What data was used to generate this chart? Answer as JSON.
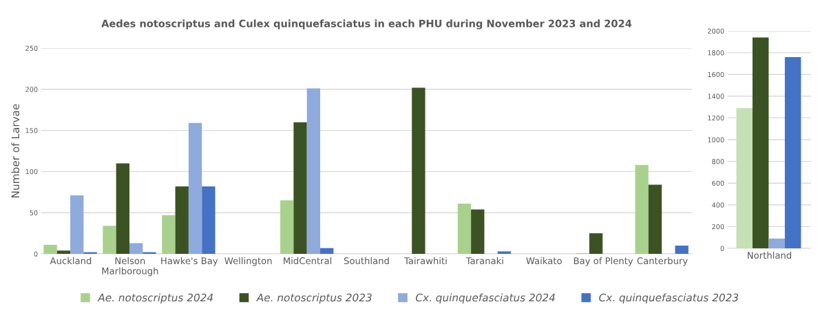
{
  "chart_data": [
    {
      "type": "bar",
      "title": "Aedes notoscriptus and Culex quinquefasciatus in each PHU during November 2023 and 2024",
      "ylabel": "Number of Larvae",
      "categories": [
        "Auckland",
        "Nelson\nMarlborough",
        "Hawke's Bay",
        "Wellington",
        "MidCentral",
        "Southland",
        "Tairawhiti",
        "Taranaki",
        "Waikato",
        "Bay of Plenty",
        "Canterbury"
      ],
      "series": [
        {
          "name": "Ae. notoscriptus 2024",
          "color": "#a9d18e",
          "values": [
            11,
            34,
            47,
            null,
            65,
            null,
            null,
            61,
            null,
            1,
            108
          ]
        },
        {
          "name": "Ae. notoscriptus 2023",
          "color": "#3b5323",
          "values": [
            4,
            110,
            82,
            null,
            160,
            null,
            202,
            54,
            null,
            25,
            84
          ]
        },
        {
          "name": "Cx. quinquefasciatus 2024",
          "color": "#8faadc",
          "values": [
            71,
            13,
            159,
            null,
            201,
            null,
            null,
            null,
            null,
            null,
            null
          ]
        },
        {
          "name": "Cx. quinquefasciatus 2023",
          "color": "#4472c4",
          "values": [
            2,
            2,
            82,
            null,
            7,
            null,
            null,
            3,
            null,
            null,
            10
          ]
        }
      ],
      "ylim": [
        0,
        250
      ],
      "yticks": [
        0,
        50,
        100,
        150,
        200,
        250
      ],
      "grid": "y",
      "legend": "bottom"
    },
    {
      "type": "bar",
      "categories": [
        "Northland"
      ],
      "series": [
        {
          "color": "#c5e0b4",
          "values": [
            1290
          ]
        },
        {
          "color": "#3b5323",
          "values": [
            1940
          ]
        },
        {
          "color": "#8faadc",
          "values": [
            90
          ]
        },
        {
          "color": "#4472c4",
          "values": [
            1760
          ]
        }
      ],
      "ylim": [
        0,
        2000
      ],
      "yticks": [
        0,
        200,
        400,
        600,
        800,
        1000,
        1200,
        1400,
        1600,
        1800,
        2000
      ],
      "grid": "y"
    }
  ]
}
